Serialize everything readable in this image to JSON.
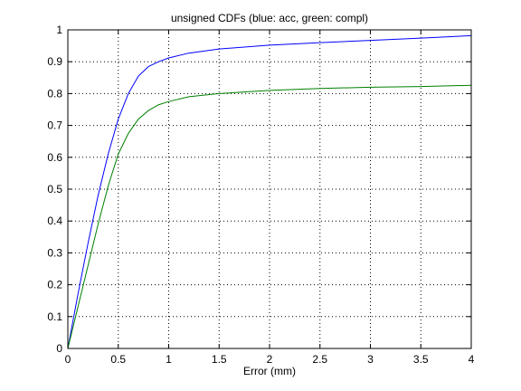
{
  "chart_data": {
    "type": "line",
    "title": "unsigned CDFs (blue: acc, green: compl)",
    "xlabel": "Error (mm)",
    "ylabel": "",
    "xlim": [
      0,
      4
    ],
    "ylim": [
      0,
      1
    ],
    "grid": true,
    "x_ticks": [
      "0",
      "0.5",
      "1",
      "1.5",
      "2",
      "2.5",
      "3",
      "3.5",
      "4"
    ],
    "y_ticks": [
      "0",
      "0.1",
      "0.2",
      "0.3",
      "0.4",
      "0.5",
      "0.6",
      "0.7",
      "0.8",
      "0.9",
      "1"
    ],
    "series": [
      {
        "color": "#0000ff",
        "x": [
          0,
          0.1,
          0.2,
          0.3,
          0.4,
          0.5,
          0.6,
          0.7,
          0.8,
          0.9,
          1.0,
          1.2,
          1.5,
          2.0,
          2.5,
          3.0,
          3.5,
          4.0
        ],
        "y": [
          0,
          0.17,
          0.33,
          0.48,
          0.61,
          0.72,
          0.8,
          0.855,
          0.885,
          0.9,
          0.912,
          0.927,
          0.94,
          0.952,
          0.96,
          0.967,
          0.974,
          0.982
        ]
      },
      {
        "color": "#008000",
        "x": [
          0,
          0.1,
          0.2,
          0.3,
          0.4,
          0.5,
          0.6,
          0.7,
          0.8,
          0.9,
          1.0,
          1.2,
          1.5,
          2.0,
          2.5,
          3.0,
          3.5,
          4.0
        ],
        "y": [
          0,
          0.13,
          0.26,
          0.39,
          0.51,
          0.61,
          0.675,
          0.72,
          0.747,
          0.765,
          0.775,
          0.79,
          0.8,
          0.81,
          0.816,
          0.82,
          0.822,
          0.826
        ]
      }
    ]
  }
}
